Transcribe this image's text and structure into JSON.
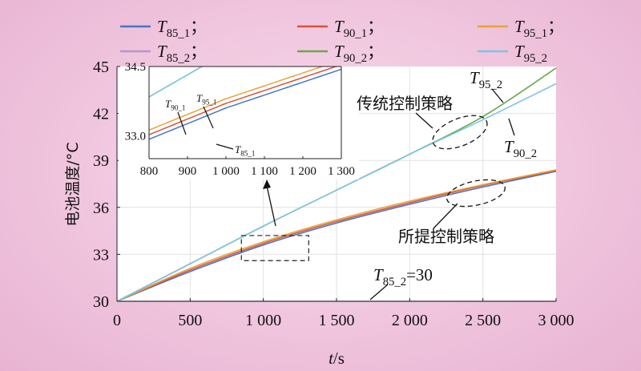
{
  "chart_data": {
    "type": "line",
    "title": "",
    "xlabel": {
      "var": "t",
      "unit": "/s"
    },
    "ylabel": "电池温度/°C",
    "xlim": [
      0,
      3000
    ],
    "ylim": [
      30,
      45
    ],
    "xticks": [
      0,
      500,
      1000,
      1500,
      2000,
      2500,
      3000
    ],
    "xtick_labels": [
      "0",
      "500",
      "1 000",
      "1 500",
      "2 000",
      "2 500",
      "3 000"
    ],
    "yticks": [
      30,
      33,
      36,
      39,
      42,
      45
    ],
    "ytick_labels": [
      "30",
      "33",
      "36",
      "39",
      "42",
      "45"
    ],
    "grid": true,
    "legend_placement": "top",
    "legend": [
      {
        "base": "T",
        "sub": "85_1",
        "sep": "；",
        "color": "#4a74c4"
      },
      {
        "base": "T",
        "sub": "90_1",
        "sep": "；",
        "color": "#d9553a"
      },
      {
        "base": "T",
        "sub": "95_1",
        "sep": "；",
        "color": "#e8a23c"
      },
      {
        "base": "T",
        "sub": "85_2",
        "sep": "；",
        "color": "#b497c9"
      },
      {
        "base": "T",
        "sub": "90_2",
        "sep": "；",
        "color": "#6aa84f"
      },
      {
        "base": "T",
        "sub": "95_2",
        "sep": "",
        "color": "#7ec3e6"
      }
    ],
    "series": [
      {
        "name": "T85_1",
        "color": "#4a74c4",
        "x": [
          0,
          500,
          1000,
          1500,
          2000,
          2500,
          3000
        ],
        "y": [
          30,
          31.9,
          33.6,
          35.0,
          36.2,
          37.3,
          38.3
        ]
      },
      {
        "name": "T90_1",
        "color": "#d9553a",
        "x": [
          0,
          500,
          1000,
          1500,
          2000,
          2500,
          3000
        ],
        "y": [
          30,
          32.0,
          33.7,
          35.1,
          36.3,
          37.4,
          38.35
        ]
      },
      {
        "name": "T95_1",
        "color": "#e8a23c",
        "x": [
          0,
          500,
          1000,
          1500,
          2000,
          2500,
          3000
        ],
        "y": [
          30,
          32.1,
          33.8,
          35.2,
          36.4,
          37.45,
          38.4
        ]
      },
      {
        "name": "T85_2",
        "color": "#b497c9",
        "x": [
          0,
          3000
        ],
        "y": [
          30,
          30
        ]
      },
      {
        "name": "T90_2",
        "color": "#6aa84f",
        "x": [
          0,
          500,
          1000,
          1500,
          2000,
          2500,
          3000
        ],
        "y": [
          30,
          32.4,
          34.8,
          37.1,
          39.4,
          41.8,
          44.9
        ]
      },
      {
        "name": "T95_2",
        "color": "#7ec3e6",
        "x": [
          0,
          500,
          1000,
          1500,
          2000,
          2500,
          3000
        ],
        "y": [
          30,
          32.4,
          34.8,
          37.1,
          39.4,
          41.6,
          43.9
        ]
      }
    ],
    "annotations": {
      "conventional": "传统控制策略",
      "proposed": "所提控制策略",
      "t95_2_label": {
        "base": "T",
        "sub": "95_2"
      },
      "t90_2_label": {
        "base": "T",
        "sub": "90_2"
      },
      "t85_2_label": {
        "base": "T",
        "sub": "85_2",
        "suffix": "=30"
      }
    },
    "inset": {
      "xlim": [
        800,
        1300
      ],
      "ylim": [
        32.5,
        34.5
      ],
      "xticks": [
        800,
        900,
        1000,
        1100,
        1200,
        1300
      ],
      "xtick_labels": [
        "800",
        "900",
        "1 000",
        "1 100",
        "1 200",
        "1 300"
      ],
      "yticks": [
        33.0,
        34.5
      ],
      "ytick_labels": [
        "33.0",
        "34.5"
      ],
      "zoom_box": {
        "x": [
          850,
          1310
        ],
        "y": [
          32.6,
          34.2
        ]
      },
      "labels": {
        "t90_1": {
          "base": "T",
          "sub": "90_1"
        },
        "t95_1": {
          "base": "T",
          "sub": "95_1"
        },
        "t85_1": {
          "base": "T",
          "sub": "85_1"
        }
      }
    }
  }
}
